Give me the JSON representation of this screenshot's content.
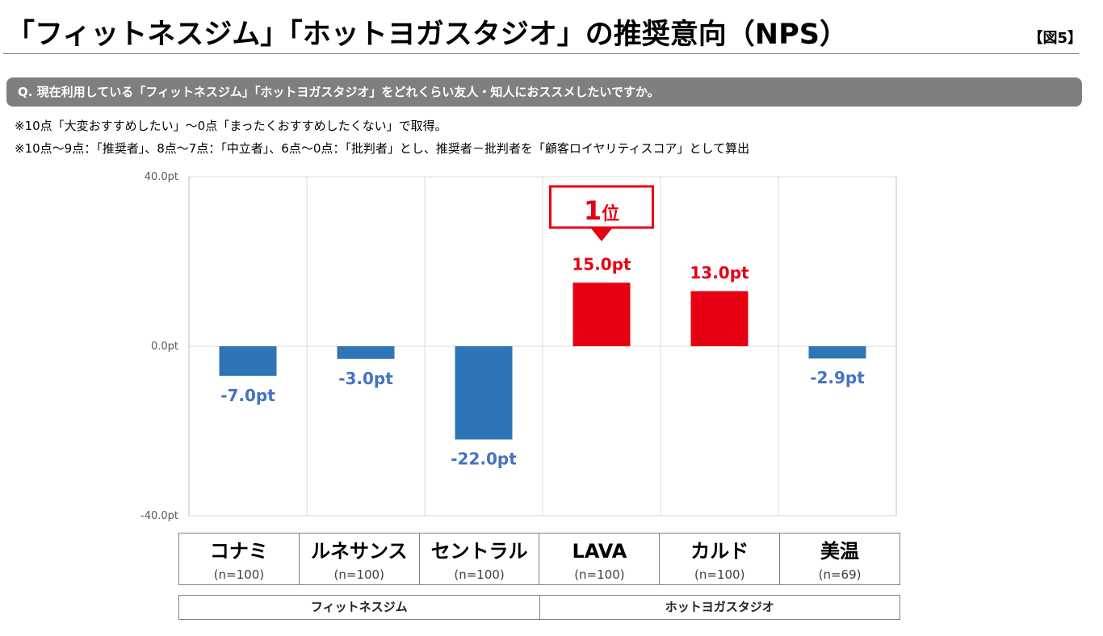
{
  "header": {
    "title": "「フィットネスジム」「ホットヨガスタジオ」の推奨意向（NPS）",
    "figure_label": "【図5】"
  },
  "question": "Q. 現在利用している「フィットネスジム」「ホットヨガスタジオ」をどれくらい友人・知人におススメしたいですか。",
  "notes": [
    "※10点「大変おすすめしたい」～0点「まったくおすすめしたくない」で取得。",
    "※10点～9点：「推奨者」、8点～7点：「中立者」、6点～0点：「批判者」とし、推奨者－批判者を「顧客ロイヤリティスコア」として算出"
  ],
  "chart_data": {
    "type": "bar",
    "categories": [
      "コナミ",
      "ルネサンス",
      "セントラル",
      "LAVA",
      "カルド",
      "美温"
    ],
    "sample_sizes": [
      "(n=100)",
      "(n=100)",
      "(n=100)",
      "(n=100)",
      "(n=100)",
      "(n=69)"
    ],
    "values": [
      -7.0,
      -3.0,
      -22.0,
      15.0,
      13.0,
      -2.9
    ],
    "value_labels": [
      "-7.0pt",
      "-3.0pt",
      "-22.0pt",
      "15.0pt",
      "13.0pt",
      "-2.9pt"
    ],
    "ylim": [
      -40,
      40
    ],
    "yticks": [
      40,
      0,
      -40
    ],
    "ytick_labels": [
      "40.0pt",
      "0.0pt",
      "-40.0pt"
    ],
    "groups": [
      {
        "label": "フィットネスジム",
        "span": 3
      },
      {
        "label": "ホットヨガスタジオ",
        "span": 3
      }
    ],
    "annotation": {
      "category": "LAVA",
      "number": "1",
      "suffix": "位"
    },
    "colors": {
      "positive": "#e60012",
      "negative": "#2e75b6",
      "negative_label": "#4472c4",
      "grid": "#d9d9d9",
      "axis": "#bfbfbf"
    },
    "grid": true,
    "legend": "none"
  }
}
